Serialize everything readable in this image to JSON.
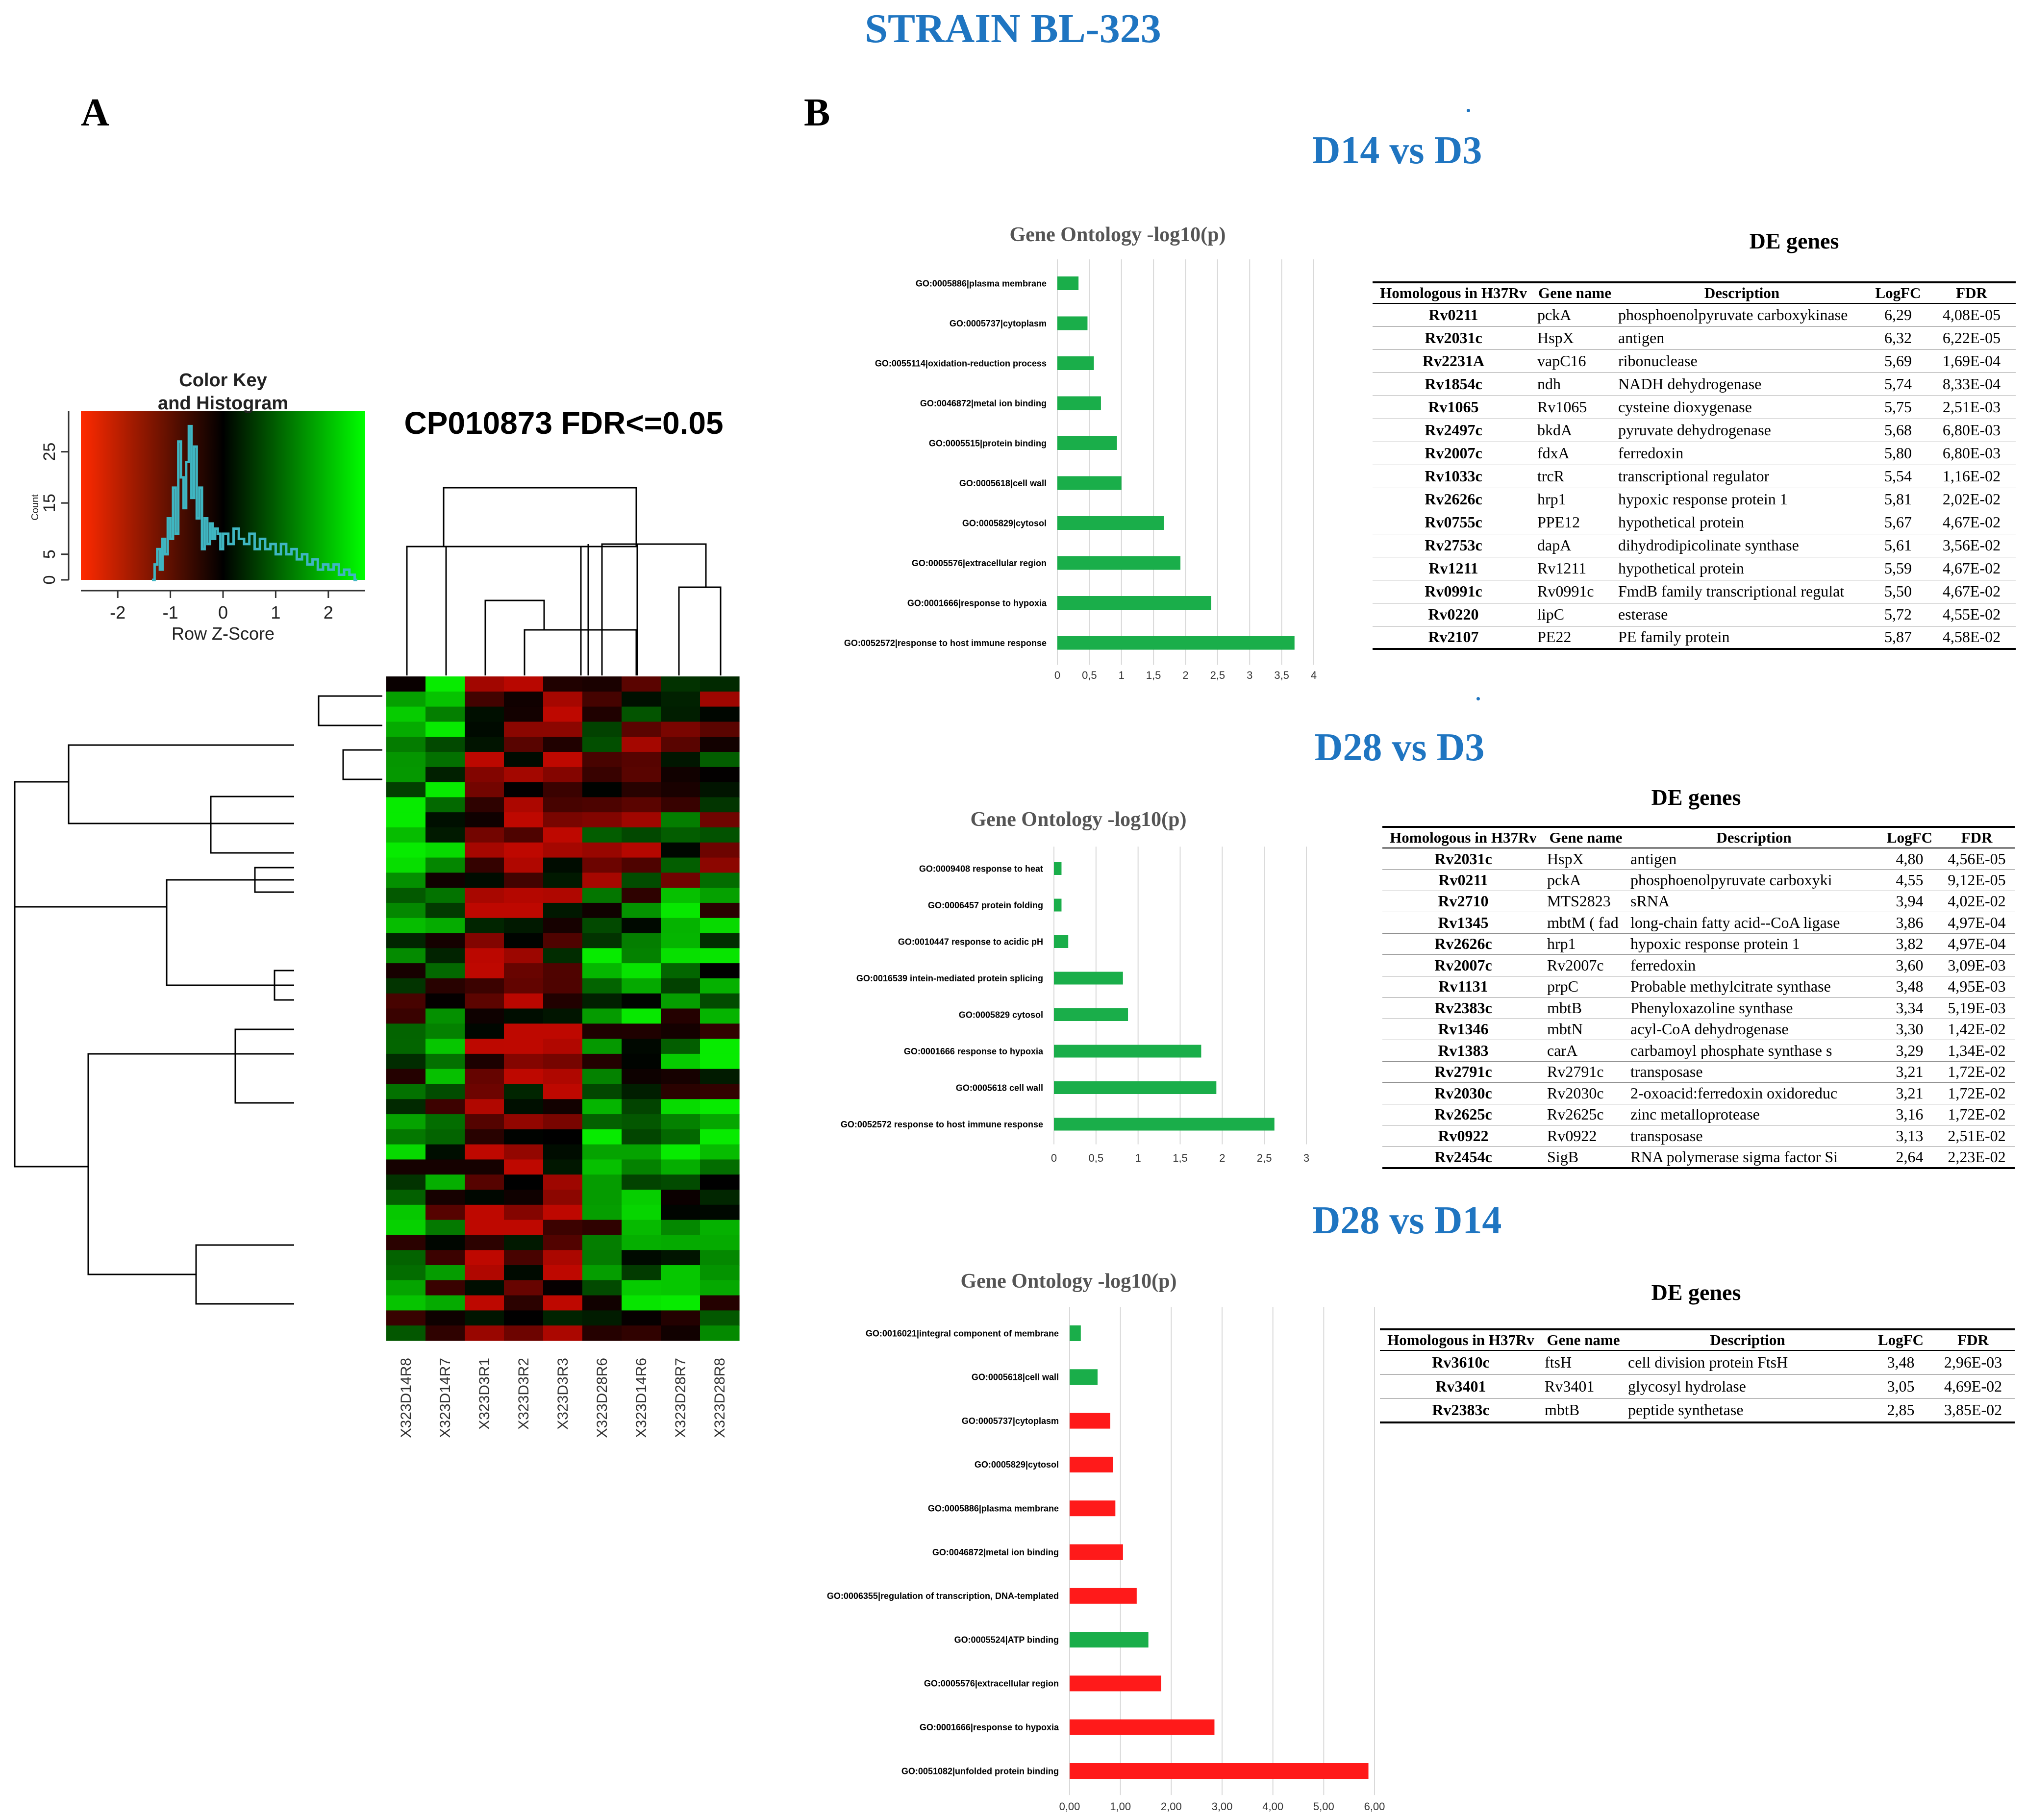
{
  "figure_title": "STRAIN BL-323",
  "panel_a_label": "A",
  "panel_b_label": "B",
  "heatmap": {
    "title": "CP010873 FDR<=0.05",
    "color_key_title": "Color Key",
    "color_key_subtitle": "and Histogram",
    "count_label": "Count",
    "xlabel": "Row Z-Score",
    "color_key_ticks": [
      "-2",
      "-1",
      "0",
      "1",
      "2"
    ],
    "count_ticks": [
      "0",
      "5",
      "15",
      "25"
    ],
    "colors": {
      "low": "#ff2a00",
      "mid": "#000000",
      "high": "#00ff00",
      "histogram": "#3fb6c2"
    },
    "columns": [
      "X323D14R8",
      "X323D14R7",
      "X323D3R1",
      "X323D3R2",
      "X323D3R3",
      "X323D28R6",
      "X323D14R6",
      "X323D28R7",
      "X323D28R8"
    ]
  },
  "comparisons": [
    {
      "label": "D14 vs D3",
      "go_title": "Gene Ontology -log10(p)",
      "de_title": "DE genes",
      "go_ticks": [
        "0",
        "0,5",
        "1",
        "1,5",
        "2",
        "2,5",
        "3",
        "3,5",
        "4"
      ],
      "de_headers": [
        "Homologous in H37Rv",
        "Gene name",
        "Description",
        "LogFC",
        "FDR"
      ],
      "de_rows": [
        [
          "Rv0211",
          "pckA",
          "phosphoenolpyruvate carboxykinase",
          "6,29",
          "4,08E-05"
        ],
        [
          "Rv2031c",
          "HspX",
          "antigen",
          "6,32",
          "6,22E-05"
        ],
        [
          "Rv2231A",
          "vapC16",
          "ribonuclease",
          "5,69",
          "1,69E-04"
        ],
        [
          "Rv1854c",
          "ndh",
          "NADH dehydrogenase",
          "5,74",
          "8,33E-04"
        ],
        [
          "Rv1065",
          "Rv1065",
          "cysteine dioxygenase",
          "5,75",
          "2,51E-03"
        ],
        [
          "Rv2497c",
          "bkdA",
          "pyruvate dehydrogenase",
          "5,68",
          "6,80E-03"
        ],
        [
          "Rv2007c",
          "fdxA",
          "ferredoxin",
          "5,80",
          "6,80E-03"
        ],
        [
          "Rv1033c",
          "trcR",
          "transcriptional regulator",
          "5,54",
          "1,16E-02"
        ],
        [
          "Rv2626c",
          "hrp1",
          "hypoxic response protein 1",
          "5,81",
          "2,02E-02"
        ],
        [
          "Rv0755c",
          "PPE12",
          "hypothetical protein",
          "5,67",
          "4,67E-02"
        ],
        [
          "Rv2753c",
          "dapA",
          "dihydrodipicolinate synthase",
          "5,61",
          "3,56E-02"
        ],
        [
          "Rv1211",
          "Rv1211",
          "hypothetical protein",
          "5,59",
          "4,67E-02"
        ],
        [
          "Rv0991c",
          "Rv0991c",
          "FmdB family transcriptional regulat",
          "5,50",
          "4,67E-02"
        ],
        [
          "Rv0220",
          "lipC",
          "esterase",
          "5,72",
          "4,55E-02"
        ],
        [
          "Rv2107",
          "PE22",
          "PE family protein",
          "5,87",
          "4,58E-02"
        ]
      ]
    },
    {
      "label": "D28 vs D3",
      "go_title": "Gene Ontology -log10(p)",
      "de_title": "DE genes",
      "go_ticks": [
        "0",
        "0,5",
        "1",
        "1,5",
        "2",
        "2,5",
        "3"
      ],
      "de_headers": [
        "Homologous in H37Rv",
        "Gene name",
        "Description",
        "LogFC",
        "FDR"
      ],
      "de_rows": [
        [
          "Rv2031c",
          "HspX",
          "antigen",
          "4,80",
          "4,56E-05"
        ],
        [
          "Rv0211",
          "pckA",
          "phosphoenolpyruvate carboxyki",
          "4,55",
          "9,12E-05"
        ],
        [
          "Rv2710",
          "MTS2823",
          "sRNA",
          "3,94",
          "4,02E-02"
        ],
        [
          "Rv1345",
          "mbtM ( fad",
          "long-chain fatty acid--CoA ligase",
          "3,86",
          "4,97E-04"
        ],
        [
          "Rv2626c",
          "hrp1",
          "hypoxic response protein 1",
          "3,82",
          "4,97E-04"
        ],
        [
          "Rv2007c",
          "Rv2007c",
          "ferredoxin",
          "3,60",
          "3,09E-03"
        ],
        [
          "Rv1131",
          "prpC",
          "Probable methylcitrate synthase",
          "3,48",
          "4,95E-03"
        ],
        [
          "Rv2383c",
          "mbtB",
          "Phenyloxazoline synthase",
          "3,34",
          "5,19E-03"
        ],
        [
          "Rv1346",
          "mbtN",
          "acyl-CoA dehydrogenase",
          "3,30",
          "1,42E-02"
        ],
        [
          "Rv1383",
          "carA",
          "carbamoyl phosphate synthase s",
          "3,29",
          "1,34E-02"
        ],
        [
          "Rv2791c",
          "Rv2791c",
          "transposase",
          "3,21",
          "1,72E-02"
        ],
        [
          "Rv2030c",
          "Rv2030c",
          "2-oxoacid:ferredoxin oxidoreduc",
          "3,21",
          "1,72E-02"
        ],
        [
          "Rv2625c",
          "Rv2625c",
          "zinc metalloprotease",
          "3,16",
          "1,72E-02"
        ],
        [
          "Rv0922",
          "Rv0922",
          "transposase",
          "3,13",
          "2,51E-02"
        ],
        [
          "Rv2454c",
          "SigB",
          "RNA polymerase sigma factor Si",
          "2,64",
          "2,23E-02"
        ]
      ]
    },
    {
      "label": "D28 vs D14",
      "go_title": "Gene Ontology -log10(p)",
      "de_title": "DE genes",
      "go_ticks": [
        "0,00",
        "1,00",
        "2,00",
        "3,00",
        "4,00",
        "5,00",
        "6,00"
      ],
      "de_headers": [
        "Homologous in H37Rv",
        "Gene name",
        "Description",
        "LogFC",
        "FDR"
      ],
      "de_rows": [
        [
          "Rv3610c",
          "ftsH",
          "cell division protein FtsH",
          "3,48",
          "2,96E-03"
        ],
        [
          "Rv3401",
          "Rv3401",
          "glycosyl hydrolase",
          "3,05",
          "4,69E-02"
        ],
        [
          "Rv2383c",
          "mbtB",
          "peptide synthetase",
          "2,85",
          "3,85E-02"
        ]
      ]
    }
  ],
  "chart_data": [
    {
      "type": "heatmap",
      "title": "CP010873 FDR<=0.05",
      "columns": [
        "X323D14R8",
        "X323D14R7",
        "X323D3R1",
        "X323D3R2",
        "X323D3R3",
        "X323D28R6",
        "X323D14R6",
        "X323D28R7",
        "X323D28R8"
      ],
      "color_key": {
        "xlabel": "Row Z-Score",
        "xlim": [
          -2.7,
          2.7
        ],
        "ylabel": "Count",
        "ylim": [
          0,
          33
        ]
      },
      "histogram": [
        [
          -1.35,
          0
        ],
        [
          -1.3,
          3
        ],
        [
          -1.25,
          6
        ],
        [
          -1.2,
          2
        ],
        [
          -1.15,
          8
        ],
        [
          -1.1,
          5
        ],
        [
          -1.05,
          12
        ],
        [
          -1.0,
          8
        ],
        [
          -0.95,
          18
        ],
        [
          -0.9,
          9
        ],
        [
          -0.85,
          27
        ],
        [
          -0.8,
          20
        ],
        [
          -0.75,
          14
        ],
        [
          -0.7,
          23
        ],
        [
          -0.65,
          30
        ],
        [
          -0.6,
          16
        ],
        [
          -0.55,
          26
        ],
        [
          -0.5,
          12
        ],
        [
          -0.45,
          18
        ],
        [
          -0.4,
          6
        ],
        [
          -0.35,
          12
        ],
        [
          -0.3,
          7
        ],
        [
          -0.25,
          11
        ],
        [
          -0.2,
          8
        ],
        [
          -0.15,
          10
        ],
        [
          -0.1,
          9
        ],
        [
          -0.05,
          6
        ],
        [
          0.0,
          9
        ],
        [
          0.1,
          7
        ],
        [
          0.2,
          10
        ],
        [
          0.3,
          8
        ],
        [
          0.4,
          7
        ],
        [
          0.5,
          9
        ],
        [
          0.6,
          6
        ],
        [
          0.7,
          8
        ],
        [
          0.8,
          6
        ],
        [
          0.9,
          7
        ],
        [
          1.0,
          5
        ],
        [
          1.1,
          7
        ],
        [
          1.2,
          5
        ],
        [
          1.3,
          6
        ],
        [
          1.4,
          4
        ],
        [
          1.5,
          5
        ],
        [
          1.6,
          3
        ],
        [
          1.7,
          4
        ],
        [
          1.8,
          2
        ],
        [
          1.9,
          3
        ],
        [
          2.0,
          2
        ],
        [
          2.1,
          3
        ],
        [
          2.2,
          1
        ],
        [
          2.3,
          2
        ],
        [
          2.4,
          1
        ],
        [
          2.5,
          0
        ]
      ]
    },
    {
      "type": "bar",
      "orientation": "horizontal",
      "title": "Gene Ontology -log10(p)",
      "categories": [
        "GO:0005886|plasma membrane",
        "GO:0005737|cytoplasm",
        "GO:0055114|oxidation-reduction process",
        "GO:0046872|metal ion binding",
        "GO:0005515|protein binding",
        "GO:0005618|cell wall",
        "GO:0005829|cytosol",
        "GO:0005576|extracellular region",
        "GO:0001666|response to hypoxia",
        "GO:0052572|response to host immune response"
      ],
      "values": [
        0.33,
        0.47,
        0.57,
        0.68,
        0.93,
        1.0,
        1.66,
        1.92,
        2.4,
        3.7
      ],
      "colors": [
        "#1aae4a",
        "#1aae4a",
        "#1aae4a",
        "#1aae4a",
        "#1aae4a",
        "#1aae4a",
        "#1aae4a",
        "#1aae4a",
        "#1aae4a",
        "#1aae4a"
      ],
      "xlim": [
        0,
        4
      ]
    },
    {
      "type": "bar",
      "orientation": "horizontal",
      "title": "Gene Ontology -log10(p)",
      "categories": [
        "GO:0009408 response to heat",
        "GO:0006457 protein folding",
        "GO:0010447 response to acidic pH",
        "GO:0016539 intein-mediated protein splicing",
        "GO:0005829 cytosol",
        "GO:0001666 response to hypoxia",
        "GO:0005618 cell wall",
        "GO:0052572 response to host immune response"
      ],
      "values": [
        0.09,
        0.09,
        0.17,
        0.82,
        0.88,
        1.75,
        1.93,
        2.62
      ],
      "colors": [
        "#1aae4a",
        "#1aae4a",
        "#1aae4a",
        "#1aae4a",
        "#1aae4a",
        "#1aae4a",
        "#1aae4a",
        "#1aae4a"
      ],
      "xlim": [
        0,
        3
      ]
    },
    {
      "type": "bar",
      "orientation": "horizontal",
      "title": "Gene Ontology -log10(p)",
      "categories": [
        "GO:0016021|integral component of membrane",
        "GO:0005618|cell wall",
        "GO:0005737|cytoplasm",
        "GO:0005829|cytosol",
        "GO:0005886|plasma membrane",
        "GO:0046872|metal ion binding",
        "GO:0006355|regulation of transcription, DNA-templated",
        "GO:0005524|ATP binding",
        "GO:0005576|extracellular region",
        "GO:0001666|response to hypoxia",
        "GO:0051082|unfolded protein binding"
      ],
      "values": [
        0.22,
        0.55,
        0.8,
        0.85,
        0.9,
        1.05,
        1.32,
        1.55,
        1.8,
        2.85,
        5.88
      ],
      "colors": [
        "#1aae4a",
        "#1aae4a",
        "#ff1a1a",
        "#ff1a1a",
        "#ff1a1a",
        "#ff1a1a",
        "#ff1a1a",
        "#1aae4a",
        "#ff1a1a",
        "#ff1a1a",
        "#ff1a1a"
      ],
      "xlim": [
        0,
        6
      ]
    }
  ]
}
